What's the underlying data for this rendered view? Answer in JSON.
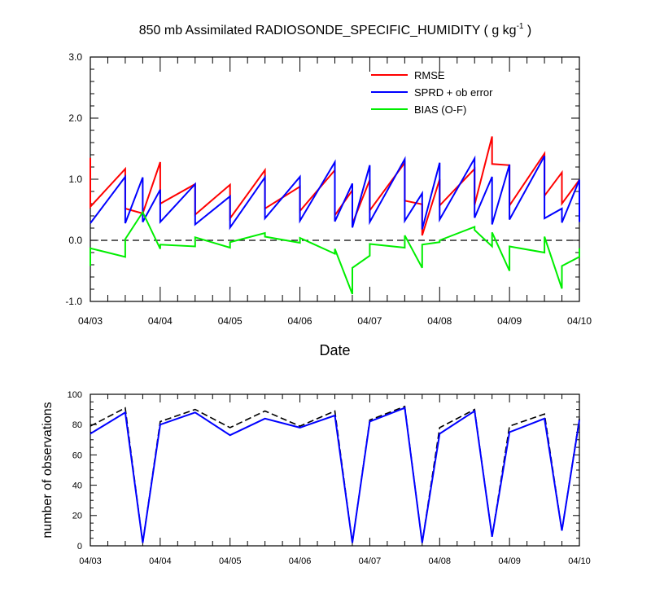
{
  "title": {
    "main": "850 mb Assimilated RADIOSONDE_SPECIFIC_HUMIDITY ( g kg",
    "sup": "-1",
    "close": " )"
  },
  "chart_data": [
    {
      "type": "line",
      "xlabel": "Date",
      "ylabel": "",
      "xlim": [
        0,
        7
      ],
      "ylim": [
        -1,
        3
      ],
      "x_tick_labels": [
        "04/03",
        "04/04",
        "04/05",
        "04/06",
        "04/07",
        "04/08",
        "04/09",
        "04/10"
      ],
      "y_ticks": [
        -1,
        0,
        1,
        2,
        3
      ],
      "y_tick_labels": [
        "-1.0",
        "0.0",
        "1.0",
        "2.0",
        "3.0"
      ],
      "reference_line": {
        "y": 0,
        "style": "dashed",
        "color": "#000000"
      },
      "legend_position": "top-right",
      "series": [
        {
          "name": "RMSE",
          "color": "#ff0000",
          "points": [
            [
              0,
              1.35
            ],
            [
              0,
              0.55
            ],
            [
              0.5,
              1.17
            ],
            [
              0.5,
              0.52
            ],
            [
              0.75,
              0.44
            ],
            [
              1,
              1.28
            ],
            [
              1,
              0.6
            ],
            [
              1.5,
              0.92
            ],
            [
              1.5,
              0.42
            ],
            [
              2,
              0.91
            ],
            [
              2,
              0.36
            ],
            [
              2.5,
              1.15
            ],
            [
              2.5,
              0.52
            ],
            [
              3,
              0.88
            ],
            [
              3,
              0.48
            ],
            [
              3.5,
              1.15
            ],
            [
              3.5,
              0.41
            ],
            [
              3.75,
              0.82
            ],
            [
              3.75,
              0.27
            ],
            [
              4,
              0.99
            ],
            [
              4,
              0.49
            ],
            [
              4.5,
              1.27
            ],
            [
              4.5,
              0.65
            ],
            [
              4.75,
              0.59
            ],
            [
              4.75,
              0.08
            ],
            [
              5,
              1.0
            ],
            [
              5,
              0.57
            ],
            [
              5.5,
              1.17
            ],
            [
              5.5,
              0.58
            ],
            [
              5.75,
              1.7
            ],
            [
              5.75,
              1.25
            ],
            [
              6,
              1.23
            ],
            [
              6,
              0.57
            ],
            [
              6.5,
              1.42
            ],
            [
              6.5,
              0.73
            ],
            [
              6.75,
              1.11
            ],
            [
              6.75,
              0.6
            ],
            [
              7,
              0.99
            ]
          ]
        },
        {
          "name": "SPRD + ob error",
          "color": "#0000ff",
          "points": [
            [
              0,
              0.28
            ],
            [
              0.5,
              1.04
            ],
            [
              0.5,
              0.28
            ],
            [
              0.75,
              1.03
            ],
            [
              0.75,
              0.3
            ],
            [
              1,
              0.83
            ],
            [
              1,
              0.3
            ],
            [
              1.5,
              0.92
            ],
            [
              1.5,
              0.26
            ],
            [
              2,
              0.72
            ],
            [
              2,
              0.21
            ],
            [
              2.5,
              1.03
            ],
            [
              2.5,
              0.36
            ],
            [
              3,
              1.04
            ],
            [
              3,
              0.32
            ],
            [
              3.5,
              1.28
            ],
            [
              3.5,
              0.31
            ],
            [
              3.75,
              0.93
            ],
            [
              3.75,
              0.21
            ],
            [
              4,
              1.23
            ],
            [
              4,
              0.3
            ],
            [
              4.5,
              1.33
            ],
            [
              4.5,
              0.32
            ],
            [
              4.75,
              0.77
            ],
            [
              4.75,
              0.18
            ],
            [
              5,
              1.27
            ],
            [
              5,
              0.34
            ],
            [
              5.5,
              1.34
            ],
            [
              5.5,
              0.37
            ],
            [
              5.75,
              1.04
            ],
            [
              5.75,
              0.26
            ],
            [
              6,
              1.24
            ],
            [
              6,
              0.34
            ],
            [
              6.5,
              1.38
            ],
            [
              6.5,
              0.36
            ],
            [
              6.75,
              0.52
            ],
            [
              6.75,
              0.29
            ],
            [
              7,
              0.99
            ],
            [
              7,
              0.3
            ]
          ]
        },
        {
          "name": "BIAS (O-F)",
          "color": "#00ee00",
          "points": [
            [
              0,
              -0.42
            ],
            [
              0,
              -0.13
            ],
            [
              0.5,
              -0.27
            ],
            [
              0.5,
              0.02
            ],
            [
              0.75,
              0.46
            ],
            [
              1,
              -0.14
            ],
            [
              1,
              -0.07
            ],
            [
              1.5,
              -0.1
            ],
            [
              1.5,
              0.05
            ],
            [
              2,
              -0.12
            ],
            [
              2,
              -0.03
            ],
            [
              2.5,
              0.12
            ],
            [
              2.5,
              0.06
            ],
            [
              3,
              -0.04
            ],
            [
              3,
              0.04
            ],
            [
              3.5,
              -0.22
            ],
            [
              3.5,
              -0.14
            ],
            [
              3.75,
              -0.88
            ],
            [
              3.75,
              -0.45
            ],
            [
              4,
              -0.25
            ],
            [
              4,
              -0.06
            ],
            [
              4.5,
              -0.12
            ],
            [
              4.5,
              0.08
            ],
            [
              4.75,
              -0.45
            ],
            [
              4.75,
              -0.07
            ],
            [
              5,
              -0.03
            ],
            [
              5,
              0.0
            ],
            [
              5.5,
              0.22
            ],
            [
              5.5,
              0.17
            ],
            [
              5.75,
              -0.1
            ],
            [
              5.75,
              0.13
            ],
            [
              6,
              -0.5
            ],
            [
              6,
              -0.1
            ],
            [
              6.5,
              -0.2
            ],
            [
              6.5,
              0.06
            ],
            [
              6.75,
              -0.79
            ],
            [
              6.75,
              -0.42
            ],
            [
              7,
              -0.27
            ],
            [
              7,
              -0.13
            ]
          ]
        }
      ]
    },
    {
      "type": "line",
      "xlabel": "",
      "ylabel": "number of observations",
      "xlim": [
        0,
        7
      ],
      "ylim": [
        0,
        100
      ],
      "x_tick_labels": [
        "04/03",
        "04/04",
        "04/05",
        "04/06",
        "04/07",
        "04/08",
        "04/09",
        "04/10"
      ],
      "y_ticks": [
        0,
        20,
        40,
        60,
        80,
        100
      ],
      "y_tick_labels": [
        "0",
        "20",
        "40",
        "60",
        "80",
        "100"
      ],
      "series": [
        {
          "color": "#000000",
          "style": "dashed",
          "points": [
            [
              0,
              79
            ],
            [
              0.5,
              91
            ],
            [
              0.75,
              2
            ],
            [
              1,
              82
            ],
            [
              1.5,
              90
            ],
            [
              2,
              78
            ],
            [
              2.5,
              89
            ],
            [
              3,
              79
            ],
            [
              3.5,
              89
            ],
            [
              3.75,
              2
            ],
            [
              4,
              83
            ],
            [
              4.5,
              92
            ],
            [
              4.75,
              2
            ],
            [
              5,
              78
            ],
            [
              5.5,
              90
            ],
            [
              5.75,
              6
            ],
            [
              6,
              79
            ],
            [
              6.5,
              87
            ],
            [
              6.75,
              10
            ],
            [
              7,
              84
            ]
          ]
        },
        {
          "color": "#0000ff",
          "style": "solid",
          "points": [
            [
              0,
              74
            ],
            [
              0.5,
              88
            ],
            [
              0.75,
              2
            ],
            [
              1,
              80
            ],
            [
              1.5,
              88
            ],
            [
              2,
              73
            ],
            [
              2.5,
              84
            ],
            [
              3,
              78
            ],
            [
              3.5,
              86
            ],
            [
              3.75,
              2
            ],
            [
              4,
              82
            ],
            [
              4.5,
              91
            ],
            [
              4.75,
              2
            ],
            [
              5,
              74
            ],
            [
              5.5,
              89
            ],
            [
              5.75,
              6
            ],
            [
              6,
              75
            ],
            [
              6.5,
              84
            ],
            [
              6.75,
              10
            ],
            [
              7,
              83
            ]
          ]
        }
      ]
    }
  ]
}
